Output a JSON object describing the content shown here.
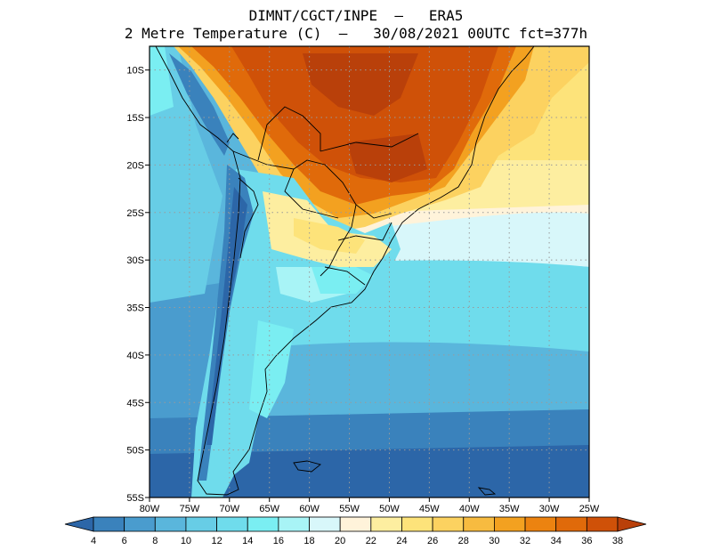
{
  "header": {
    "line1": "DIMNT/CGCT/INPE  –   ERA5",
    "line2": "2 Metre Temperature (C)  –   30/08/2021 00UTC fct=377h"
  },
  "map": {
    "lat_labels": [
      "10S",
      "15S",
      "20S",
      "25S",
      "30S",
      "35S",
      "40S",
      "45S",
      "50S",
      "55S"
    ],
    "lon_labels": [
      "80W",
      "75W",
      "70W",
      "65W",
      "60W",
      "55W",
      "50W",
      "45W",
      "40W",
      "35W",
      "30W",
      "25W"
    ],
    "lat_range": [
      -55,
      -7.5
    ],
    "lon_range": [
      -80,
      -25
    ],
    "grid": "dotted"
  },
  "colorbar": {
    "ticks": [
      "4",
      "6",
      "8",
      "10",
      "12",
      "14",
      "16",
      "18",
      "20",
      "22",
      "24",
      "26",
      "28",
      "30",
      "32",
      "34",
      "36",
      "38"
    ],
    "colors": [
      "#2c66a8",
      "#3a82bc",
      "#4a9cce",
      "#5ab6dc",
      "#67cde6",
      "#6fdcec",
      "#7aeef2",
      "#a8f4f6",
      "#d8f7fa",
      "#fff3da",
      "#fdeea0",
      "#fde37a",
      "#fcd260",
      "#f7bb40",
      "#f3a120",
      "#ec8310",
      "#e06a0a",
      "#cf5108",
      "#b9400a"
    ]
  }
}
